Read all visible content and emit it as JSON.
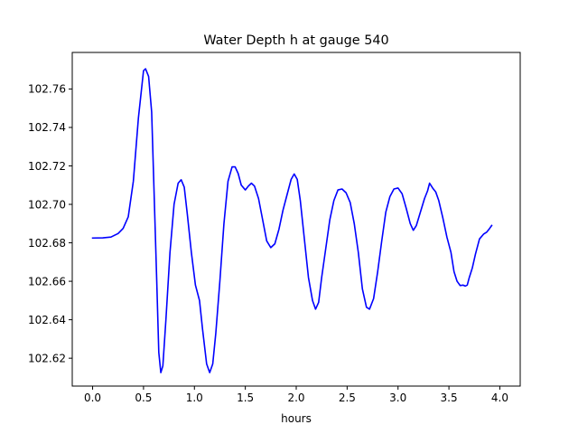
{
  "chart_data": {
    "type": "line",
    "title": "Water Depth h at gauge 540",
    "xlabel": "hours",
    "ylabel": "",
    "xlim": [
      -0.2,
      4.2
    ],
    "ylim": [
      102.6055,
      102.779
    ],
    "xticks": [
      0.0,
      0.5,
      1.0,
      1.5,
      2.0,
      2.5,
      3.0,
      3.5,
      4.0
    ],
    "xtick_labels": [
      "0.0",
      "0.5",
      "1.0",
      "1.5",
      "2.0",
      "2.5",
      "3.0",
      "3.5",
      "4.0"
    ],
    "yticks": [
      102.62,
      102.64,
      102.66,
      102.68,
      102.7,
      102.72,
      102.74,
      102.76
    ],
    "ytick_labels": [
      "102.62",
      "102.64",
      "102.66",
      "102.68",
      "102.70",
      "102.72",
      "102.74",
      "102.76"
    ],
    "grid": false,
    "series": [
      {
        "color": "#0000ff",
        "points": [
          [
            0.0,
            102.6825
          ],
          [
            0.1,
            102.6826
          ],
          [
            0.18,
            102.683
          ],
          [
            0.25,
            102.6848
          ],
          [
            0.3,
            102.6875
          ],
          [
            0.35,
            102.6935
          ],
          [
            0.4,
            102.712
          ],
          [
            0.45,
            102.745
          ],
          [
            0.5,
            102.7695
          ],
          [
            0.52,
            102.7705
          ],
          [
            0.55,
            102.7665
          ],
          [
            0.58,
            102.748
          ],
          [
            0.6,
            102.713
          ],
          [
            0.63,
            102.66
          ],
          [
            0.65,
            102.623
          ],
          [
            0.67,
            102.6125
          ],
          [
            0.69,
            102.616
          ],
          [
            0.72,
            102.64
          ],
          [
            0.76,
            102.675
          ],
          [
            0.8,
            102.7
          ],
          [
            0.84,
            102.711
          ],
          [
            0.87,
            102.7128
          ],
          [
            0.9,
            102.709
          ],
          [
            0.93,
            102.695
          ],
          [
            0.97,
            102.675
          ],
          [
            1.01,
            102.658
          ],
          [
            1.05,
            102.65
          ],
          [
            1.08,
            102.635
          ],
          [
            1.12,
            102.617
          ],
          [
            1.15,
            102.6125
          ],
          [
            1.18,
            102.617
          ],
          [
            1.21,
            102.633
          ],
          [
            1.25,
            102.66
          ],
          [
            1.29,
            102.69
          ],
          [
            1.33,
            102.712
          ],
          [
            1.37,
            102.7195
          ],
          [
            1.4,
            102.7195
          ],
          [
            1.43,
            102.716
          ],
          [
            1.46,
            102.71
          ],
          [
            1.5,
            102.7075
          ],
          [
            1.53,
            102.7095
          ],
          [
            1.56,
            102.711
          ],
          [
            1.59,
            102.7095
          ],
          [
            1.63,
            102.703
          ],
          [
            1.67,
            102.692
          ],
          [
            1.71,
            102.681
          ],
          [
            1.75,
            102.6775
          ],
          [
            1.79,
            102.6795
          ],
          [
            1.83,
            102.687
          ],
          [
            1.87,
            102.697
          ],
          [
            1.91,
            102.705
          ],
          [
            1.95,
            102.713
          ],
          [
            1.98,
            102.7158
          ],
          [
            2.01,
            102.713
          ],
          [
            2.04,
            102.702
          ],
          [
            2.08,
            102.682
          ],
          [
            2.12,
            102.662
          ],
          [
            2.16,
            102.65
          ],
          [
            2.19,
            102.6455
          ],
          [
            2.22,
            102.649
          ],
          [
            2.25,
            102.662
          ],
          [
            2.29,
            102.677
          ],
          [
            2.33,
            102.692
          ],
          [
            2.37,
            102.702
          ],
          [
            2.41,
            102.7075
          ],
          [
            2.45,
            102.708
          ],
          [
            2.49,
            102.706
          ],
          [
            2.53,
            102.701
          ],
          [
            2.57,
            102.69
          ],
          [
            2.61,
            102.675
          ],
          [
            2.65,
            102.656
          ],
          [
            2.69,
            102.6465
          ],
          [
            2.72,
            102.6455
          ],
          [
            2.76,
            102.651
          ],
          [
            2.8,
            102.665
          ],
          [
            2.84,
            102.681
          ],
          [
            2.88,
            102.696
          ],
          [
            2.92,
            102.704
          ],
          [
            2.96,
            102.708
          ],
          [
            3.0,
            102.7085
          ],
          [
            3.04,
            102.7055
          ],
          [
            3.08,
            102.698
          ],
          [
            3.12,
            102.69
          ],
          [
            3.15,
            102.6865
          ],
          [
            3.18,
            102.689
          ],
          [
            3.22,
            102.696
          ],
          [
            3.26,
            102.703
          ],
          [
            3.29,
            102.707
          ],
          [
            3.31,
            102.711
          ],
          [
            3.34,
            102.7085
          ],
          [
            3.37,
            102.7065
          ],
          [
            3.4,
            102.702
          ],
          [
            3.44,
            102.693
          ],
          [
            3.48,
            102.683
          ],
          [
            3.52,
            102.675
          ],
          [
            3.55,
            102.665
          ],
          [
            3.58,
            102.66
          ],
          [
            3.61,
            102.6578
          ],
          [
            3.64,
            102.658
          ],
          [
            3.66,
            102.6575
          ],
          [
            3.68,
            102.658
          ],
          [
            3.7,
            102.662
          ],
          [
            3.73,
            102.667
          ],
          [
            3.76,
            102.674
          ],
          [
            3.8,
            102.682
          ],
          [
            3.84,
            102.6845
          ],
          [
            3.87,
            102.6855
          ],
          [
            3.9,
            102.6875
          ],
          [
            3.92,
            102.689
          ]
        ]
      }
    ]
  }
}
